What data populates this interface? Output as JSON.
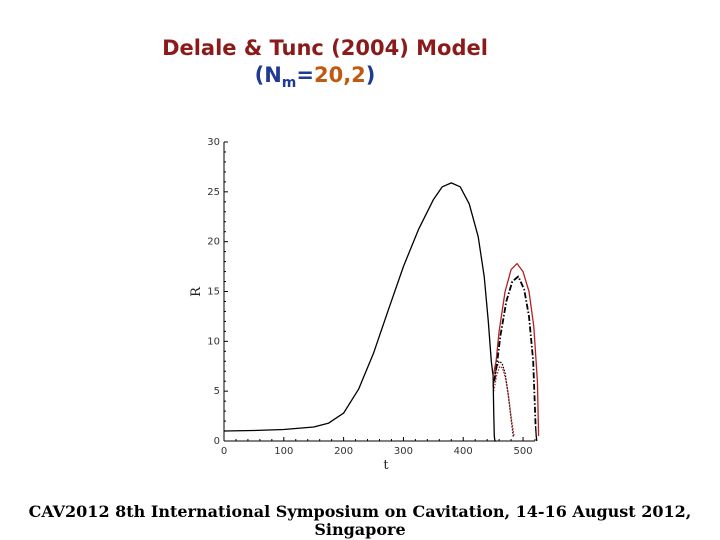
{
  "header": {
    "title": "Delale & Tunc (2004) Model",
    "subtitle_open": "(",
    "subtitle_n": "N",
    "subtitle_sub": "m",
    "subtitle_eq": "=",
    "subtitle_vals": "20,2",
    "subtitle_close": ")"
  },
  "footer": {
    "line1": "CAV2012 8th International Symposium on Cavitation, 14-16 August 2012,",
    "line2": "Singapore"
  },
  "chart_data": {
    "type": "line",
    "title": "Delale & Tunc (2004) Model (Nm=20,2)",
    "xlabel": "t",
    "ylabel": "R",
    "xlim": [
      0,
      520
    ],
    "ylim": [
      0,
      30
    ],
    "xticks": [
      0,
      100,
      200,
      300,
      400,
      500
    ],
    "yticks": [
      0,
      5,
      10,
      15,
      20,
      25,
      30
    ],
    "grid": false,
    "series": [
      {
        "color": "#000000",
        "style": "solid",
        "x": [
          0,
          50,
          100,
          150,
          175,
          200,
          225,
          250,
          275,
          300,
          325,
          350,
          365,
          380,
          395,
          410,
          425,
          435,
          442,
          447,
          450
        ],
        "y": [
          1.0,
          1.05,
          1.15,
          1.4,
          1.8,
          2.8,
          5.2,
          8.8,
          13.2,
          17.5,
          21.2,
          24.2,
          25.5,
          25.9,
          25.5,
          23.8,
          20.5,
          16.5,
          12.0,
          8.0,
          6.5
        ]
      },
      {
        "color": "#B22222",
        "style": "solid",
        "x": [
          450,
          455,
          460,
          470,
          480,
          490,
          500,
          510,
          518,
          524,
          526
        ],
        "y": [
          6.5,
          8.0,
          11.0,
          15.0,
          17.2,
          17.8,
          17.0,
          15.0,
          11.5,
          6.0,
          0.5
        ]
      },
      {
        "color": "#000000",
        "style": "dashdot",
        "x": [
          452,
          457,
          462,
          472,
          482,
          492,
          502,
          510,
          517,
          521
        ],
        "y": [
          6.0,
          8.0,
          10.5,
          14.0,
          16.0,
          16.5,
          15.2,
          12.5,
          8.0,
          1.5
        ]
      },
      {
        "color": "#000000",
        "style": "dotted",
        "x": [
          450,
          455,
          460,
          465,
          470,
          475,
          480,
          484
        ],
        "y": [
          5.5,
          7.2,
          8.0,
          7.8,
          6.8,
          4.8,
          2.2,
          0.3
        ]
      },
      {
        "color": "#B22222",
        "style": "dotted",
        "x": [
          451,
          456,
          461,
          466,
          471,
          476,
          481,
          485
        ],
        "y": [
          5.0,
          6.6,
          7.5,
          7.3,
          6.2,
          4.3,
          2.0,
          0.5
        ]
      },
      {
        "color": "#000000",
        "style": "solid",
        "x": [
          450,
          451,
          452,
          453,
          455
        ],
        "y": [
          6.5,
          3.0,
          0.5,
          0.0,
          0.0
        ]
      },
      {
        "color": "#000000",
        "style": "solid",
        "x": [
          521,
          522,
          523
        ],
        "y": [
          1.5,
          0.5,
          0.0
        ]
      }
    ]
  }
}
